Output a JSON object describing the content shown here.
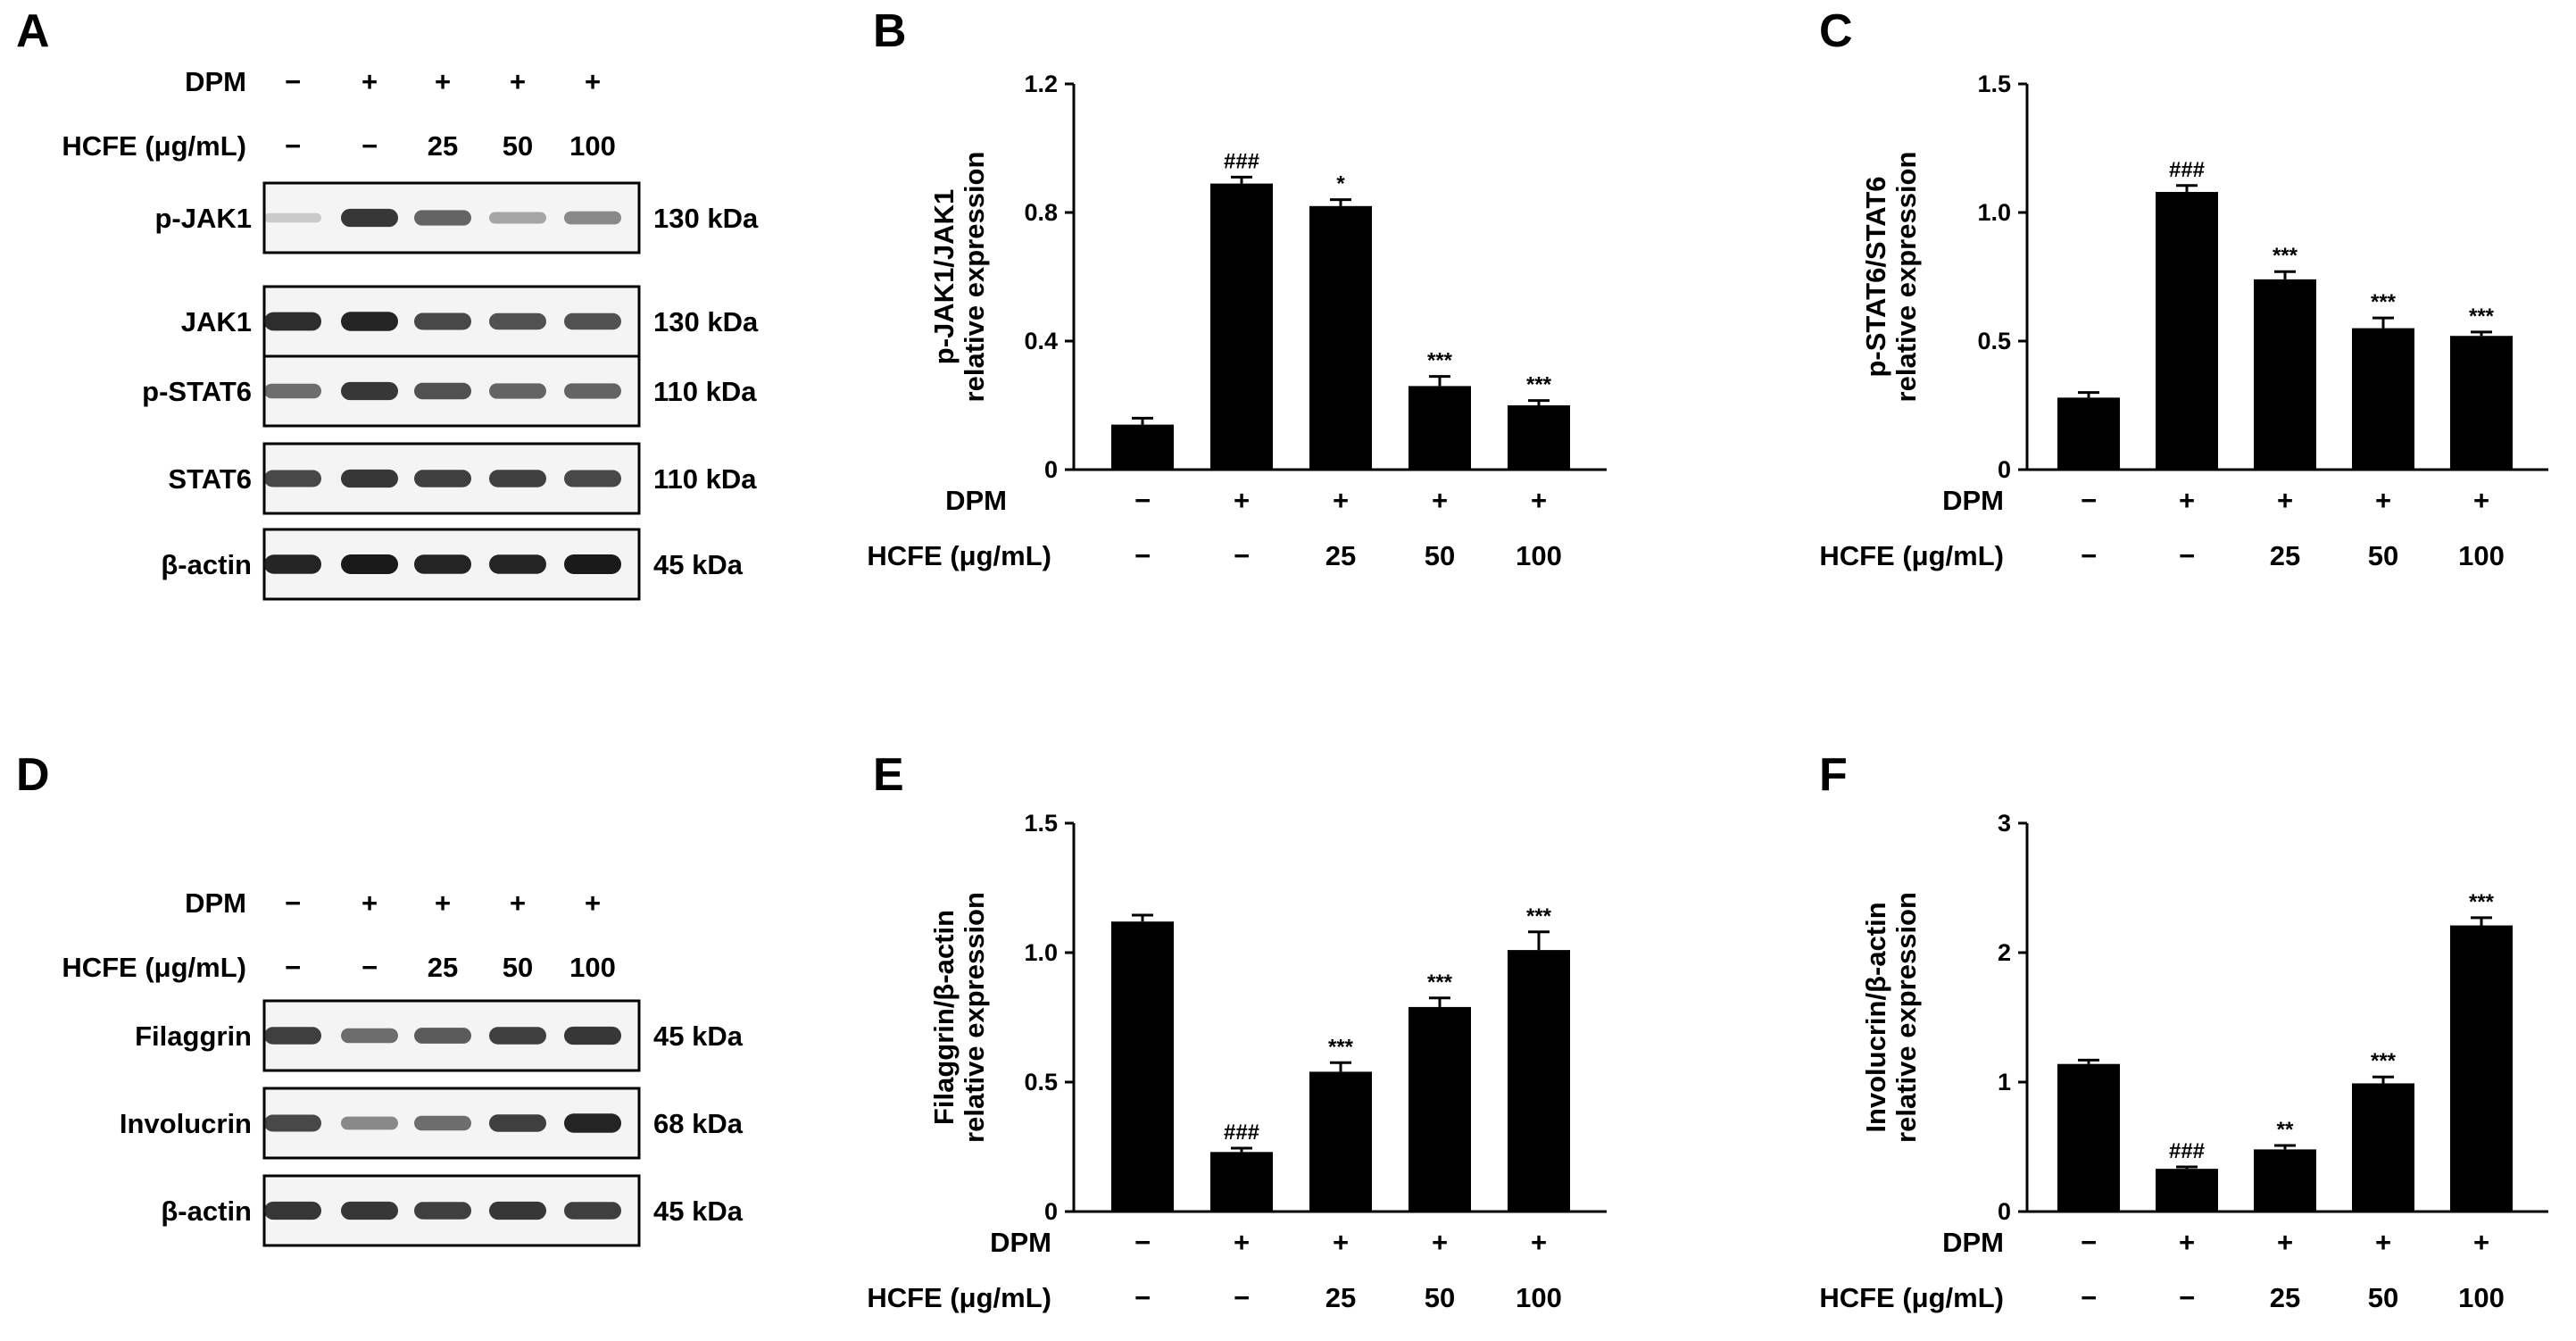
{
  "colors": {
    "bar": "#000000",
    "axis": "#000000",
    "blot_bg": "#ffffff",
    "band": "#1a1a1a"
  },
  "panel_letters": [
    "A",
    "B",
    "C",
    "D",
    "E",
    "F"
  ],
  "blots": [
    {
      "panel": "A",
      "conditions": {
        "dpm_label": "DPM",
        "dpm": [
          "−",
          "+",
          "+",
          "+",
          "+"
        ],
        "hcfe_label": "HCFE (μg/mL)",
        "hcfe": [
          "−",
          "−",
          "25",
          "50",
          "100"
        ]
      },
      "rows": [
        {
          "label": "p-JAK1",
          "size": "130 kDa",
          "intensity": [
            0.05,
            0.85,
            0.6,
            0.25,
            0.4
          ]
        },
        {
          "label": "JAK1",
          "size": "130 kDa",
          "intensity": [
            0.9,
            0.95,
            0.75,
            0.7,
            0.7
          ]
        },
        {
          "label": "p-STAT6",
          "size": "110 kDa",
          "intensity": [
            0.55,
            0.85,
            0.7,
            0.6,
            0.6
          ]
        },
        {
          "label": "STAT6",
          "size": "110 kDa",
          "intensity": [
            0.75,
            0.85,
            0.8,
            0.8,
            0.75
          ]
        },
        {
          "label": "β-actin",
          "size": "45 kDa",
          "intensity": [
            0.95,
            1.0,
            0.95,
            0.95,
            1.0
          ]
        }
      ]
    },
    {
      "panel": "D",
      "conditions": {
        "dpm_label": "DPM",
        "dpm": [
          "−",
          "+",
          "+",
          "+",
          "+"
        ],
        "hcfe_label": "HCFE (μg/mL)",
        "hcfe": [
          "−",
          "−",
          "25",
          "50",
          "100"
        ]
      },
      "rows": [
        {
          "label": "Filaggrin",
          "size": "45 kDa",
          "intensity": [
            0.8,
            0.55,
            0.65,
            0.8,
            0.85
          ]
        },
        {
          "label": "Involucrin",
          "size": "68 kDa",
          "intensity": [
            0.75,
            0.4,
            0.55,
            0.8,
            0.95
          ]
        },
        {
          "label": "β-actin",
          "size": "45 kDa",
          "intensity": [
            0.85,
            0.85,
            0.8,
            0.85,
            0.8
          ]
        }
      ]
    }
  ],
  "chart_data": [
    {
      "panel": "B",
      "type": "bar",
      "ylabel_lines": [
        "p-JAK1/JAK1",
        "relative expression"
      ],
      "ylim": [
        0,
        1.2
      ],
      "yticks": [
        "0",
        "0.4",
        "0.8",
        "1.2"
      ],
      "ytick_values": [
        0,
        0.4,
        0.8,
        1.2
      ],
      "values": [
        0.14,
        0.89,
        0.82,
        0.26,
        0.2
      ],
      "errors": [
        0.02,
        0.02,
        0.02,
        0.03,
        0.015
      ],
      "significance": [
        "",
        "###",
        "*",
        "***",
        "***"
      ],
      "dpm_label": "DPM",
      "dpm": [
        "−",
        "+",
        "+",
        "+",
        "+"
      ],
      "hcfe_label": "HCFE (μg/mL)",
      "hcfe": [
        "−",
        "−",
        "25",
        "50",
        "100"
      ]
    },
    {
      "panel": "C",
      "type": "bar",
      "ylabel_lines": [
        "p-STAT6/STAT6",
        "relative expression"
      ],
      "ylim": [
        0,
        1.5
      ],
      "yticks": [
        "0",
        "0.5",
        "1.0",
        "1.5"
      ],
      "ytick_values": [
        0,
        0.5,
        1.0,
        1.5
      ],
      "values": [
        0.28,
        1.08,
        0.74,
        0.55,
        0.52
      ],
      "errors": [
        0.02,
        0.025,
        0.03,
        0.04,
        0.015
      ],
      "significance": [
        "",
        "###",
        "***",
        "***",
        "***"
      ],
      "dpm_label": "DPM",
      "dpm": [
        "−",
        "+",
        "+",
        "+",
        "+"
      ],
      "hcfe_label": "HCFE (μg/mL)",
      "hcfe": [
        "−",
        "−",
        "25",
        "50",
        "100"
      ]
    },
    {
      "panel": "E",
      "type": "bar",
      "ylabel_lines": [
        "Filaggrin/β-actin",
        "relative expression"
      ],
      "ylim": [
        0,
        1.5
      ],
      "yticks": [
        "0",
        "0.5",
        "1.0",
        "1.5"
      ],
      "ytick_values": [
        0,
        0.5,
        1.0,
        1.5
      ],
      "values": [
        1.12,
        0.23,
        0.54,
        0.79,
        1.01
      ],
      "errors": [
        0.025,
        0.015,
        0.035,
        0.035,
        0.07
      ],
      "significance": [
        "",
        "###",
        "***",
        "***",
        "***"
      ],
      "dpm_label": "DPM",
      "dpm": [
        "−",
        "+",
        "+",
        "+",
        "+"
      ],
      "hcfe_label": "HCFE (μg/mL)",
      "hcfe": [
        "−",
        "−",
        "25",
        "50",
        "100"
      ]
    },
    {
      "panel": "F",
      "type": "bar",
      "ylabel_lines": [
        "Involucrin/β-actin",
        "relative expression"
      ],
      "ylim": [
        0,
        3
      ],
      "yticks": [
        "0",
        "1",
        "2",
        "3"
      ],
      "ytick_values": [
        0,
        1,
        2,
        3
      ],
      "values": [
        1.14,
        0.33,
        0.48,
        0.99,
        2.21
      ],
      "errors": [
        0.03,
        0.015,
        0.03,
        0.05,
        0.06
      ],
      "significance": [
        "",
        "###",
        "**",
        "***",
        "***"
      ],
      "dpm_label": "DPM",
      "dpm": [
        "−",
        "+",
        "+",
        "+",
        "+"
      ],
      "hcfe_label": "HCFE (μg/mL)",
      "hcfe": [
        "−",
        "−",
        "25",
        "50",
        "100"
      ]
    }
  ]
}
